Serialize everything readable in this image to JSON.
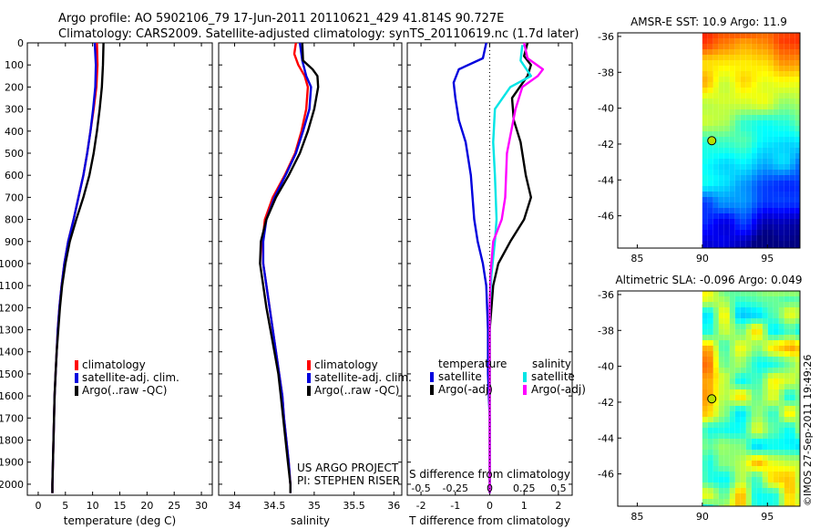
{
  "header": {
    "line1": "Argo profile: AO 5902106_79 17-Jun-2011 20110621_429 41.814S 90.727E",
    "line2": "Climatology: CARS2009. Satellite-adjusted climatology: synTS_20110619.nc (1.7d later)"
  },
  "colors": {
    "climatology": "#ff0000",
    "satellite": "#0000dd",
    "argo": "#000000",
    "sal_satellite": "#00e5e5",
    "sal_argo": "#ff00ff"
  },
  "chart_data": [
    {
      "type": "line",
      "id": "temperature",
      "xlabel": "temperature (deg C)",
      "ylabel": "",
      "xlim": [
        -2,
        32
      ],
      "ylim": [
        2050,
        0
      ],
      "xticks": [
        0,
        5,
        10,
        15,
        20,
        25,
        30
      ],
      "yticks": [
        0,
        100,
        200,
        300,
        400,
        500,
        600,
        700,
        800,
        900,
        1000,
        1100,
        1200,
        1300,
        1400,
        1500,
        1600,
        1700,
        1800,
        1900,
        2000
      ],
      "series": [
        {
          "name": "climatology",
          "color_key": "climatology",
          "points": [
            [
              10.8,
              0
            ],
            [
              10.9,
              100
            ],
            [
              10.7,
              200
            ],
            [
              10.2,
              300
            ],
            [
              9.6,
              400
            ],
            [
              9.0,
              500
            ],
            [
              8.3,
              600
            ],
            [
              7.4,
              700
            ],
            [
              6.5,
              800
            ],
            [
              5.5,
              900
            ],
            [
              4.8,
              1000
            ],
            [
              4.3,
              1100
            ],
            [
              3.9,
              1200
            ],
            [
              3.6,
              1300
            ],
            [
              3.4,
              1400
            ],
            [
              3.2,
              1500
            ],
            [
              3.0,
              1600
            ],
            [
              2.9,
              1700
            ],
            [
              2.8,
              1800
            ],
            [
              2.7,
              1900
            ],
            [
              2.6,
              2000
            ],
            [
              2.6,
              2040
            ]
          ]
        },
        {
          "name": "satellite-adj. clim.",
          "color_key": "satellite",
          "points": [
            [
              10.4,
              0
            ],
            [
              10.6,
              100
            ],
            [
              10.5,
              200
            ],
            [
              10.1,
              300
            ],
            [
              9.6,
              400
            ],
            [
              9.0,
              500
            ],
            [
              8.3,
              600
            ],
            [
              7.4,
              700
            ],
            [
              6.5,
              800
            ],
            [
              5.5,
              900
            ],
            [
              4.8,
              1000
            ],
            [
              4.3,
              1100
            ],
            [
              3.9,
              1200
            ],
            [
              3.6,
              1300
            ],
            [
              3.4,
              1400
            ],
            [
              3.2,
              1500
            ],
            [
              3.0,
              1600
            ],
            [
              2.9,
              1700
            ],
            [
              2.8,
              1800
            ],
            [
              2.7,
              1900
            ],
            [
              2.6,
              2000
            ],
            [
              2.6,
              2040
            ]
          ]
        },
        {
          "name": "Argo(..raw -QC)",
          "color_key": "argo",
          "points": [
            [
              12.0,
              0
            ],
            [
              11.9,
              100
            ],
            [
              11.7,
              200
            ],
            [
              11.3,
              300
            ],
            [
              10.8,
              400
            ],
            [
              10.2,
              500
            ],
            [
              9.4,
              600
            ],
            [
              8.3,
              700
            ],
            [
              7.0,
              800
            ],
            [
              5.8,
              900
            ],
            [
              5.0,
              1000
            ],
            [
              4.4,
              1100
            ],
            [
              4.0,
              1200
            ],
            [
              3.7,
              1300
            ],
            [
              3.4,
              1400
            ],
            [
              3.2,
              1500
            ],
            [
              3.0,
              1600
            ],
            [
              2.9,
              1700
            ],
            [
              2.8,
              1800
            ],
            [
              2.7,
              1900
            ],
            [
              2.6,
              2000
            ],
            [
              2.6,
              2040
            ]
          ]
        }
      ],
      "legend": [
        "climatology",
        "satellite-adj. clim.",
        "Argo(..raw -QC)"
      ]
    },
    {
      "type": "line",
      "id": "salinity",
      "xlabel": "salinity",
      "xlim": [
        33.8,
        36.1
      ],
      "ylim": [
        2050,
        0
      ],
      "xticks": [
        34,
        34.5,
        35,
        35.5,
        36
      ],
      "series": [
        {
          "name": "climatology",
          "color_key": "climatology",
          "points": [
            [
              34.77,
              0
            ],
            [
              34.75,
              50
            ],
            [
              34.8,
              100
            ],
            [
              34.88,
              150
            ],
            [
              34.92,
              200
            ],
            [
              34.9,
              300
            ],
            [
              34.84,
              400
            ],
            [
              34.76,
              500
            ],
            [
              34.63,
              600
            ],
            [
              34.48,
              700
            ],
            [
              34.38,
              800
            ],
            [
              34.35,
              900
            ],
            [
              34.36,
              1000
            ],
            [
              34.4,
              1100
            ],
            [
              34.44,
              1200
            ],
            [
              34.48,
              1300
            ],
            [
              34.52,
              1400
            ],
            [
              34.56,
              1500
            ],
            [
              34.6,
              1600
            ],
            [
              34.62,
              1700
            ],
            [
              34.65,
              1800
            ],
            [
              34.68,
              1900
            ],
            [
              34.7,
              2000
            ],
            [
              34.7,
              2040
            ]
          ]
        },
        {
          "name": "satellite-adj. clim.",
          "color_key": "satellite",
          "points": [
            [
              34.82,
              0
            ],
            [
              34.85,
              80
            ],
            [
              34.9,
              150
            ],
            [
              34.96,
              200
            ],
            [
              34.94,
              300
            ],
            [
              34.86,
              400
            ],
            [
              34.77,
              500
            ],
            [
              34.64,
              600
            ],
            [
              34.5,
              700
            ],
            [
              34.4,
              800
            ],
            [
              34.36,
              900
            ],
            [
              34.36,
              1000
            ],
            [
              34.4,
              1100
            ],
            [
              34.44,
              1200
            ],
            [
              34.48,
              1300
            ],
            [
              34.52,
              1400
            ],
            [
              34.56,
              1500
            ],
            [
              34.6,
              1600
            ],
            [
              34.62,
              1700
            ],
            [
              34.65,
              1800
            ],
            [
              34.68,
              1900
            ],
            [
              34.7,
              2000
            ],
            [
              34.7,
              2040
            ]
          ]
        },
        {
          "name": "Argo(..raw -QC)",
          "color_key": "argo",
          "points": [
            [
              34.85,
              0
            ],
            [
              34.86,
              80
            ],
            [
              34.98,
              120
            ],
            [
              35.04,
              150
            ],
            [
              35.05,
              200
            ],
            [
              35.0,
              300
            ],
            [
              34.92,
              400
            ],
            [
              34.82,
              500
            ],
            [
              34.68,
              600
            ],
            [
              34.52,
              700
            ],
            [
              34.4,
              800
            ],
            [
              34.33,
              900
            ],
            [
              34.32,
              1000
            ],
            [
              34.36,
              1100
            ],
            [
              34.4,
              1200
            ],
            [
              34.45,
              1300
            ],
            [
              34.5,
              1400
            ],
            [
              34.55,
              1500
            ],
            [
              34.58,
              1600
            ],
            [
              34.61,
              1700
            ],
            [
              34.64,
              1800
            ],
            [
              34.67,
              1900
            ],
            [
              34.7,
              2000
            ],
            [
              34.7,
              2040
            ]
          ]
        }
      ],
      "legend": [
        "climatology",
        "satellite-adj. clim.",
        "Argo(..raw -QC)"
      ],
      "annotation": [
        "US ARGO PROJECT",
        "PI: STEPHEN RISER"
      ]
    },
    {
      "type": "line",
      "id": "difference",
      "xlabel": "T difference from climatology",
      "top_label": "S difference from climatology",
      "xlim": [
        -2.4,
        2.4
      ],
      "ylim": [
        2050,
        0
      ],
      "xticks": [
        -2,
        -1,
        0,
        1,
        2
      ],
      "top_ticks": [
        "-0.5",
        "-0.25",
        "0",
        "0.25",
        "0.5"
      ],
      "top_tick_values": [
        -2,
        -1,
        0,
        1,
        2
      ],
      "series": [
        {
          "name": "temperature satellite",
          "color_key": "satellite",
          "points": [
            [
              -0.1,
              0
            ],
            [
              -0.2,
              70
            ],
            [
              -0.9,
              120
            ],
            [
              -1.05,
              180
            ],
            [
              -1.0,
              250
            ],
            [
              -0.9,
              350
            ],
            [
              -0.7,
              450
            ],
            [
              -0.55,
              600
            ],
            [
              -0.45,
              800
            ],
            [
              -0.35,
              900
            ],
            [
              -0.2,
              1000
            ],
            [
              -0.1,
              1100
            ],
            [
              -0.05,
              1300
            ],
            [
              -0.05,
              1500
            ],
            [
              0.0,
              1700
            ],
            [
              0.0,
              2040
            ]
          ]
        },
        {
          "name": "temperature Argo(-adj)",
          "color_key": "argo",
          "points": [
            [
              1.1,
              0
            ],
            [
              1.0,
              60
            ],
            [
              1.2,
              100
            ],
            [
              1.1,
              150
            ],
            [
              0.65,
              250
            ],
            [
              0.7,
              350
            ],
            [
              0.9,
              450
            ],
            [
              1.05,
              600
            ],
            [
              1.2,
              700
            ],
            [
              1.0,
              800
            ],
            [
              0.6,
              900
            ],
            [
              0.25,
              1000
            ],
            [
              0.1,
              1100
            ],
            [
              0.05,
              1200
            ],
            [
              0.0,
              1300
            ],
            [
              0.0,
              1500
            ],
            [
              0.0,
              1700
            ],
            [
              0.0,
              2040
            ]
          ]
        },
        {
          "name": "salinity satellite",
          "color_key": "sal_satellite",
          "points": [
            [
              0.95,
              10
            ],
            [
              0.9,
              80
            ],
            [
              1.2,
              150
            ],
            [
              0.6,
              200
            ],
            [
              0.15,
              300
            ],
            [
              0.1,
              450
            ],
            [
              0.15,
              600
            ],
            [
              0.2,
              800
            ],
            [
              0.15,
              900
            ],
            [
              0.05,
              1050
            ],
            [
              0.0,
              1200
            ],
            [
              0.0,
              1400
            ],
            [
              0.0,
              2040
            ]
          ]
        },
        {
          "name": "salinity Argo(-adj)",
          "color_key": "sal_argo",
          "points": [
            [
              1.0,
              0
            ],
            [
              1.1,
              70
            ],
            [
              1.55,
              120
            ],
            [
              1.4,
              150
            ],
            [
              0.95,
              200
            ],
            [
              0.75,
              300
            ],
            [
              0.5,
              500
            ],
            [
              0.45,
              700
            ],
            [
              0.35,
              800
            ],
            [
              0.1,
              900
            ],
            [
              0.02,
              1050
            ],
            [
              0.0,
              1200
            ],
            [
              0.0,
              1400
            ],
            [
              0.0,
              2040
            ]
          ]
        }
      ],
      "legend_groups": [
        {
          "title": "temperature",
          "entries": [
            {
              "label": "satellite",
              "color_key": "satellite"
            },
            {
              "label": "Argo(-adj)",
              "color_key": "argo"
            }
          ]
        },
        {
          "title": "salinity",
          "entries": [
            {
              "label": "satellite",
              "color_key": "sal_satellite"
            },
            {
              "label": "Argo(-adj)",
              "color_key": "sal_argo"
            }
          ]
        }
      ]
    },
    {
      "type": "heatmap",
      "id": "sst_map",
      "title": "AMSR-E SST: 10.9 Argo: 11.9",
      "xlim": [
        83.5,
        97.5
      ],
      "ylim": [
        -47.8,
        -35.8
      ],
      "xticks": [
        85,
        90,
        95
      ],
      "yticks": [
        -36,
        -38,
        -40,
        -42,
        -44,
        -46
      ],
      "data_x_start": 90,
      "argo_marker": {
        "lon": 90.727,
        "lat": -41.814
      }
    },
    {
      "type": "heatmap",
      "id": "sla_map",
      "title": "Altimetric SLA: -0.096 Argo: 0.049",
      "xlim": [
        83.5,
        97.5
      ],
      "ylim": [
        -47.8,
        -35.8
      ],
      "xticks": [
        85,
        90,
        95
      ],
      "yticks": [
        -36,
        -38,
        -40,
        -42,
        -44,
        -46
      ],
      "data_x_start": 90,
      "argo_marker": {
        "lon": 90.727,
        "lat": -41.814
      }
    }
  ],
  "credit": "©IMOS 27-Sep-2011 19:49:26"
}
